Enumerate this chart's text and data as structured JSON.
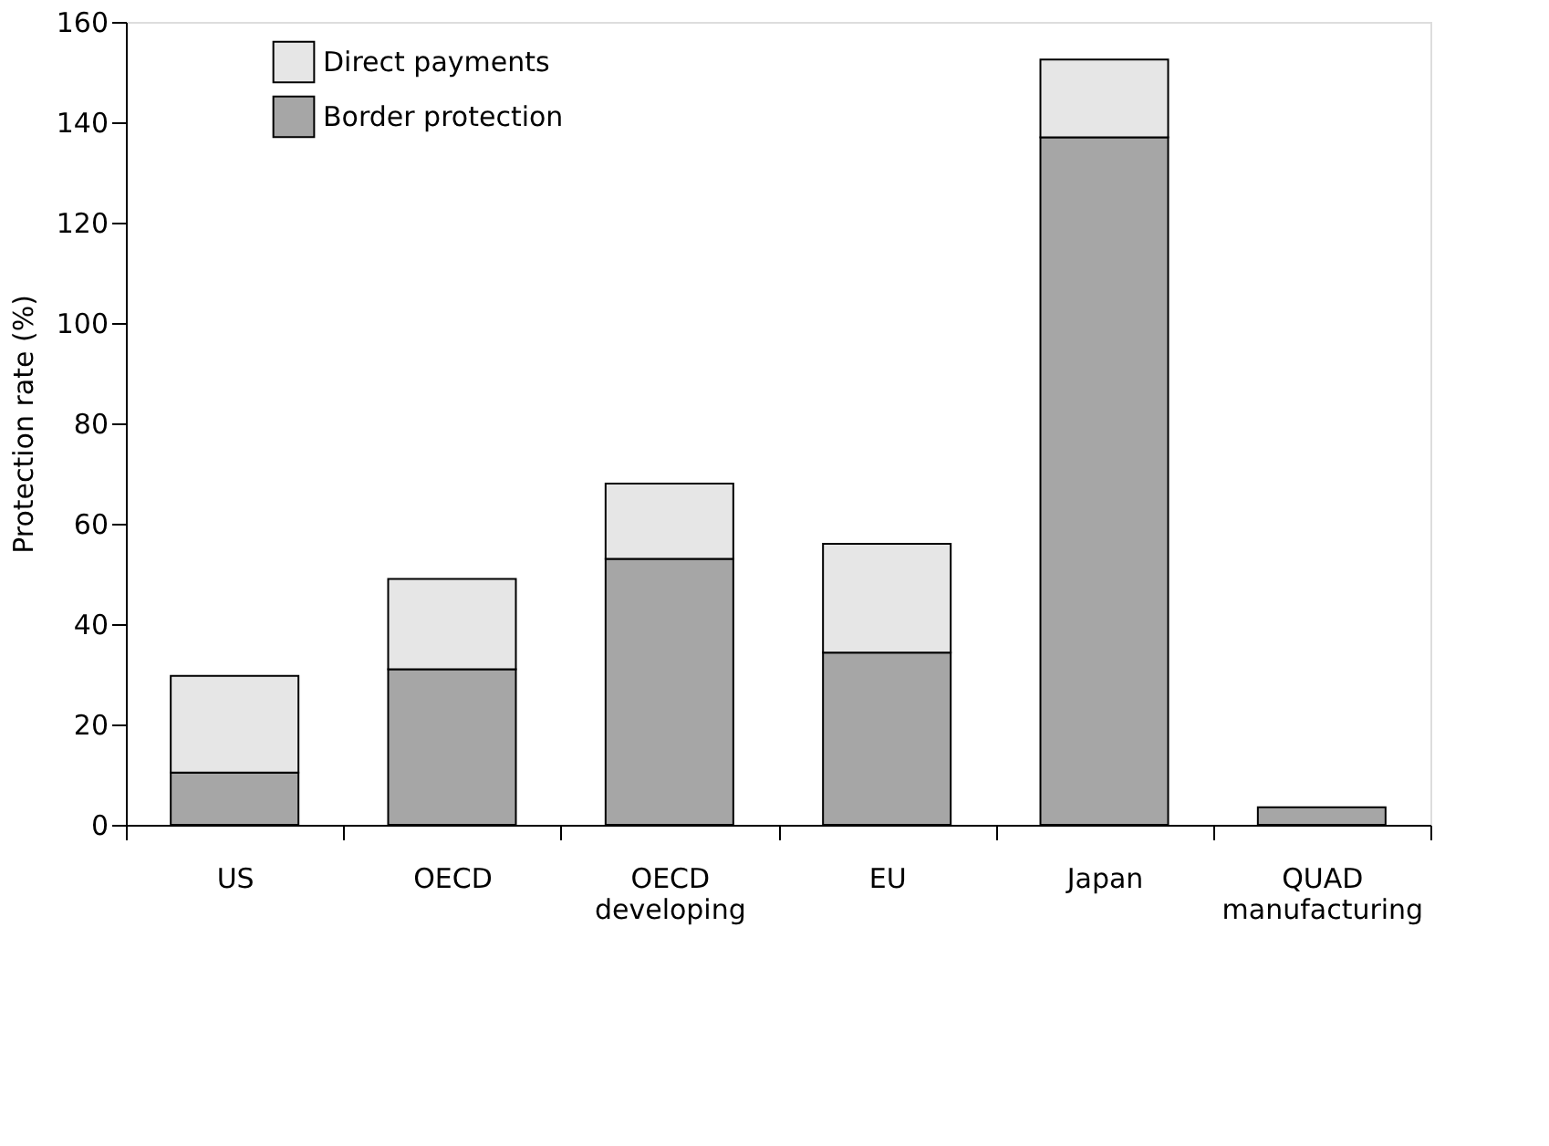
{
  "chart_data": {
    "type": "bar",
    "stacked": true,
    "ylabel": "Protection rate (%)",
    "categories": [
      "US",
      "OECD",
      "OECD developing",
      "EU",
      "Japan",
      "QUAD manufacturing"
    ],
    "series": [
      {
        "name": "Border protection",
        "color": "#a6a6a6",
        "values": [
          10.4,
          31,
          53,
          34.3,
          137,
          3.5
        ]
      },
      {
        "name": "Direct payments",
        "color": "#e6e6e6",
        "values": [
          19.3,
          18,
          15,
          21.7,
          15.5,
          null
        ]
      }
    ],
    "ylim": [
      0,
      160
    ],
    "yticks": [
      0,
      20,
      40,
      60,
      80,
      100,
      120,
      140,
      160
    ],
    "grid": false,
    "legend": "top left"
  }
}
